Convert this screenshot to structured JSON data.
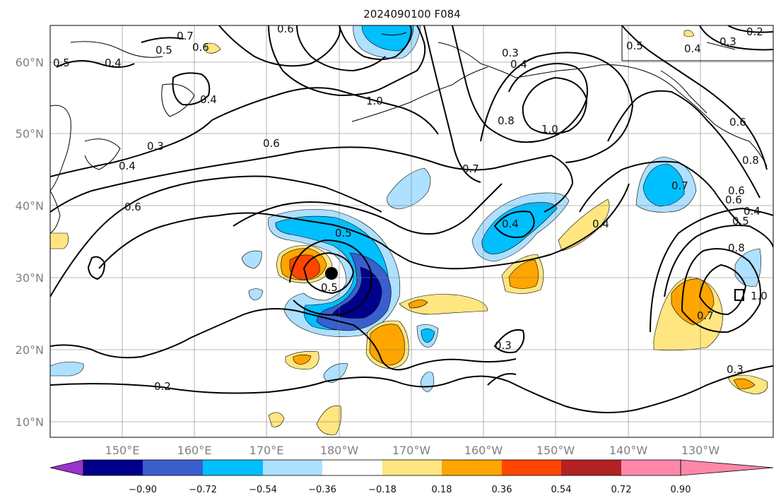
{
  "map": {
    "title": "2024090100 F084",
    "lat_labels": [
      "60°N",
      "50°N",
      "40°N",
      "30°N",
      "20°N",
      "10°N"
    ],
    "lon_labels": [
      "150°E",
      "160°E",
      "170°E",
      "180°W",
      "170°W",
      "160°W",
      "150°W",
      "140°W",
      "130°W"
    ],
    "contour_labels": [
      "0.7",
      "0.6",
      "0.5",
      "0.5",
      "0.4",
      "0.6",
      "0.4",
      "0.3",
      "0.4",
      "1.0",
      "0.6",
      "0.8",
      "0.3",
      "0.4",
      "1.0",
      "0.5",
      "0.4",
      "0.3",
      "0.2",
      "0.6",
      "0.8",
      "0.7",
      "0.6",
      "0.4",
      "0.5",
      "0.4",
      "0.6",
      "0.5",
      "0.4",
      "0.7",
      "0.6",
      "0.5",
      "0.8",
      "1.0",
      "0.7",
      "0.3",
      "0.2",
      "0.3"
    ],
    "storm_marker": "storm-center-dot"
  },
  "colorbar": {
    "tick_labels": [
      "−0.90",
      "−0.72",
      "−0.54",
      "−0.36",
      "−0.18",
      "0.18",
      "0.36",
      "0.54",
      "0.72",
      "0.90"
    ],
    "colors": [
      "#9933cc",
      "#00008b",
      "#3a5fcd",
      "#00bfff",
      "#aee0ff",
      "#ffffff",
      "#ffe680",
      "#ffa500",
      "#ff4500",
      "#b22222",
      "#ff88aa"
    ]
  }
}
